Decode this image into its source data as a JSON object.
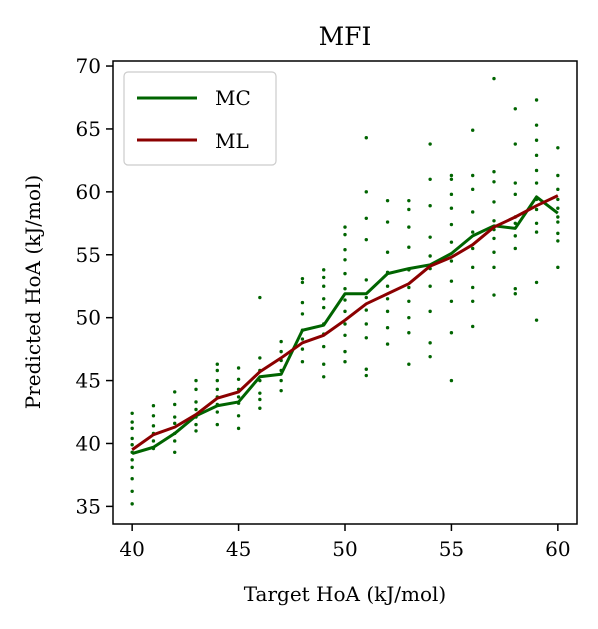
{
  "chart_data": {
    "type": "line",
    "title": "MFI",
    "xlabel": "Target HoA (kJ/mol)",
    "ylabel": "Predicted HoA (kJ/mol)",
    "xlim": [
      39.1,
      60.9
    ],
    "ylim": [
      33.6,
      70.4
    ],
    "xticks": [
      40,
      45,
      50,
      55,
      60
    ],
    "yticks": [
      35,
      40,
      45,
      50,
      55,
      60,
      65,
      70
    ],
    "grid": false,
    "legend": {
      "placement": "top-left",
      "entries": [
        "MC",
        "ML"
      ]
    },
    "colors": {
      "MC": "#006400",
      "ML": "#8b0000"
    },
    "x": [
      40,
      41,
      42,
      43,
      44,
      45,
      46,
      47,
      48,
      49,
      50,
      51,
      52,
      53,
      54,
      55,
      56,
      57,
      58,
      59,
      60
    ],
    "series": [
      {
        "name": "MC",
        "color": "#006400",
        "values": [
          39.2,
          39.7,
          40.8,
          42.2,
          43.0,
          43.3,
          45.3,
          45.5,
          49.0,
          49.4,
          51.9,
          51.9,
          53.5,
          53.9,
          54.2,
          55.1,
          56.5,
          57.3,
          57.1,
          59.6,
          58.3
        ]
      },
      {
        "name": "ML",
        "color": "#8b0000",
        "values": [
          39.5,
          40.7,
          41.3,
          42.3,
          43.6,
          44.1,
          45.7,
          46.8,
          48.0,
          48.6,
          49.8,
          51.1,
          51.9,
          52.7,
          54.1,
          54.8,
          55.8,
          57.2,
          58.0,
          58.9,
          59.7
        ]
      }
    ],
    "scatter": {
      "color": "#006400",
      "points": [
        [
          40,
          35.2
        ],
        [
          40,
          36.2
        ],
        [
          40,
          37.2
        ],
        [
          40,
          38.1
        ],
        [
          40,
          38.7
        ],
        [
          40,
          39.3
        ],
        [
          40,
          39.9
        ],
        [
          40,
          40.4
        ],
        [
          40,
          41.2
        ],
        [
          40,
          41.7
        ],
        [
          40,
          42.4
        ],
        [
          41,
          39.6
        ],
        [
          41,
          40.2
        ],
        [
          41,
          40.8
        ],
        [
          41,
          41.4
        ],
        [
          41,
          42.2
        ],
        [
          41,
          43.0
        ],
        [
          42,
          39.3
        ],
        [
          42,
          40.2
        ],
        [
          42,
          40.8
        ],
        [
          42,
          41.6
        ],
        [
          42,
          42.1
        ],
        [
          42,
          43.1
        ],
        [
          42,
          44.1
        ],
        [
          43,
          41.0
        ],
        [
          43,
          41.5
        ],
        [
          43,
          42.1
        ],
        [
          43,
          42.7
        ],
        [
          43,
          43.3
        ],
        [
          43,
          44.3
        ],
        [
          43,
          45.0
        ],
        [
          44,
          41.5
        ],
        [
          44,
          42.5
        ],
        [
          44,
          43.1
        ],
        [
          44,
          43.7
        ],
        [
          44,
          44.3
        ],
        [
          44,
          45.0
        ],
        [
          44,
          45.8
        ],
        [
          44,
          46.3
        ],
        [
          45,
          41.2
        ],
        [
          45,
          42.2
        ],
        [
          45,
          43.2
        ],
        [
          45,
          43.7
        ],
        [
          45,
          44.3
        ],
        [
          45,
          45.1
        ],
        [
          45,
          46.0
        ],
        [
          46,
          42.8
        ],
        [
          46,
          43.5
        ],
        [
          46,
          44.0
        ],
        [
          46,
          45.0
        ],
        [
          46,
          45.8
        ],
        [
          46,
          46.8
        ],
        [
          46,
          51.6
        ],
        [
          47,
          44.2
        ],
        [
          47,
          45.0
        ],
        [
          47,
          45.8
        ],
        [
          47,
          46.6
        ],
        [
          47,
          47.3
        ],
        [
          47,
          48.1
        ],
        [
          48,
          46.5
        ],
        [
          48,
          47.5
        ],
        [
          48,
          48.3
        ],
        [
          48,
          49.0
        ],
        [
          48,
          50.3
        ],
        [
          48,
          51.2
        ],
        [
          48,
          52.8
        ],
        [
          48,
          53.1
        ],
        [
          49,
          45.3
        ],
        [
          49,
          46.3
        ],
        [
          49,
          47.7
        ],
        [
          49,
          48.7
        ],
        [
          49,
          49.5
        ],
        [
          49,
          50.8
        ],
        [
          49,
          51.5
        ],
        [
          49,
          52.5
        ],
        [
          49,
          53.2
        ],
        [
          49,
          53.8
        ],
        [
          50,
          46.5
        ],
        [
          50,
          47.3
        ],
        [
          50,
          48.6
        ],
        [
          50,
          49.5
        ],
        [
          50,
          50.5
        ],
        [
          50,
          51.4
        ],
        [
          50,
          52.3
        ],
        [
          50,
          53.5
        ],
        [
          50,
          54.6
        ],
        [
          50,
          55.4
        ],
        [
          50,
          56.6
        ],
        [
          50,
          57.2
        ],
        [
          51,
          45.4
        ],
        [
          51,
          45.9
        ],
        [
          51,
          48.4
        ],
        [
          51,
          49.5
        ],
        [
          51,
          50.6
        ],
        [
          51,
          51.6
        ],
        [
          51,
          53.0
        ],
        [
          51,
          56.2
        ],
        [
          51,
          57.9
        ],
        [
          51,
          60.0
        ],
        [
          51,
          64.3
        ],
        [
          52,
          47.9
        ],
        [
          52,
          49.2
        ],
        [
          52,
          50.5
        ],
        [
          52,
          51.5
        ],
        [
          52,
          52.5
        ],
        [
          52,
          53.6
        ],
        [
          52,
          55.2
        ],
        [
          52,
          57.6
        ],
        [
          52,
          59.3
        ],
        [
          53,
          46.3
        ],
        [
          53,
          48.8
        ],
        [
          53,
          50.0
        ],
        [
          53,
          51.3
        ],
        [
          53,
          52.4
        ],
        [
          53,
          53.8
        ],
        [
          53,
          55.6
        ],
        [
          53,
          57.2
        ],
        [
          53,
          58.6
        ],
        [
          53,
          59.3
        ],
        [
          54,
          46.9
        ],
        [
          54,
          48.0
        ],
        [
          54,
          50.5
        ],
        [
          54,
          52.5
        ],
        [
          54,
          53.9
        ],
        [
          54,
          54.9
        ],
        [
          54,
          56.4
        ],
        [
          54,
          58.9
        ],
        [
          54,
          61.0
        ],
        [
          54,
          63.8
        ],
        [
          55,
          45.0
        ],
        [
          55,
          48.8
        ],
        [
          55,
          51.3
        ],
        [
          55,
          52.9
        ],
        [
          55,
          54.5
        ],
        [
          55,
          56.0
        ],
        [
          55,
          57.4
        ],
        [
          55,
          58.7
        ],
        [
          55,
          59.8
        ],
        [
          55,
          61.0
        ],
        [
          55,
          61.3
        ],
        [
          56,
          49.3
        ],
        [
          56,
          51.3
        ],
        [
          56,
          52.4
        ],
        [
          56,
          54.0
        ],
        [
          56,
          55.5
        ],
        [
          56,
          56.8
        ],
        [
          56,
          58.4
        ],
        [
          56,
          60.2
        ],
        [
          56,
          61.3
        ],
        [
          56,
          64.9
        ],
        [
          57,
          51.8
        ],
        [
          57,
          54.0
        ],
        [
          57,
          55.2
        ],
        [
          57,
          56.3
        ],
        [
          57,
          57.0
        ],
        [
          57,
          57.7
        ],
        [
          57,
          59.2
        ],
        [
          57,
          60.8
        ],
        [
          57,
          61.6
        ],
        [
          57,
          69.0
        ],
        [
          58,
          51.9
        ],
        [
          58,
          52.3
        ],
        [
          58,
          55.5
        ],
        [
          58,
          56.5
        ],
        [
          58,
          57.5
        ],
        [
          58,
          58.0
        ],
        [
          58,
          59.8
        ],
        [
          58,
          60.7
        ],
        [
          58,
          63.8
        ],
        [
          58,
          66.6
        ],
        [
          59,
          49.8
        ],
        [
          59,
          52.8
        ],
        [
          59,
          56.8
        ],
        [
          59,
          57.5
        ],
        [
          59,
          58.6
        ],
        [
          59,
          59.4
        ],
        [
          59,
          60.7
        ],
        [
          59,
          61.7
        ],
        [
          59,
          62.9
        ],
        [
          59,
          64.1
        ],
        [
          59,
          65.3
        ],
        [
          59,
          67.3
        ],
        [
          60,
          54.0
        ],
        [
          60,
          56.1
        ],
        [
          60,
          56.7
        ],
        [
          60,
          57.6
        ],
        [
          60,
          58.0
        ],
        [
          60,
          58.7
        ],
        [
          60,
          59.4
        ],
        [
          60,
          60.2
        ],
        [
          60,
          61.3
        ],
        [
          60,
          63.5
        ]
      ]
    }
  }
}
